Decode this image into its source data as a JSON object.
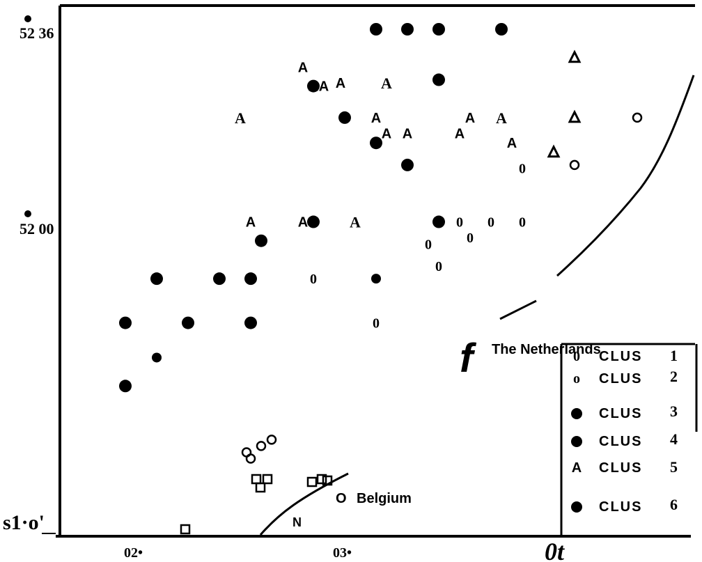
{
  "chart_data": {
    "type": "scatter",
    "title": "",
    "xlabel": "",
    "ylabel": "",
    "x_ticks": [
      "02•",
      "03•",
      "0t"
    ],
    "y_ticks": [
      "52 36",
      "52 00",
      "s1·o'"
    ],
    "annotations": {
      "netherlands": "The Netherlands",
      "belgium": "Belgium",
      "f_glyph": "f",
      "n_glyph": "N"
    },
    "legend": {
      "position": "bottom-right",
      "entries": [
        {
          "symbol": "0",
          "label": "CLUS",
          "num": "1"
        },
        {
          "symbol": "o",
          "label": "CLUS",
          "num": "2"
        },
        {
          "symbol": "●",
          "label": "CLUS",
          "num": "3"
        },
        {
          "symbol": "●",
          "label": "CLUS",
          "num": "4"
        },
        {
          "symbol": "A",
          "label": "CLUS",
          "num": "5"
        },
        {
          "symbol": "●",
          "label": "CLUS",
          "num": "6"
        }
      ]
    },
    "series": [
      {
        "marker": "dot-large",
        "points": [
          [
            3.15,
            52.6
          ],
          [
            3.3,
            52.6
          ],
          [
            3.45,
            52.6
          ],
          [
            3.75,
            52.6
          ],
          [
            3.45,
            52.44
          ],
          [
            2.85,
            52.42
          ],
          [
            3.0,
            52.32
          ],
          [
            3.15,
            52.24
          ],
          [
            3.3,
            52.17
          ],
          [
            2.85,
            51.99
          ],
          [
            3.45,
            51.99
          ],
          [
            2.6,
            51.93
          ],
          [
            1.95,
            51.67
          ],
          [
            2.1,
            51.81
          ],
          [
            2.25,
            51.67
          ],
          [
            2.4,
            51.81
          ],
          [
            2.55,
            51.81
          ],
          [
            2.55,
            51.67
          ],
          [
            1.95,
            51.47
          ]
        ]
      },
      {
        "marker": "dot-small",
        "points": [
          [
            3.15,
            51.81
          ],
          [
            2.1,
            51.56
          ]
        ]
      },
      {
        "marker": "A-sans",
        "points": [
          [
            2.8,
            52.48
          ],
          [
            2.85,
            52.42
          ],
          [
            2.9,
            52.42
          ],
          [
            2.98,
            52.43
          ],
          [
            3.15,
            52.32
          ],
          [
            3.2,
            52.27
          ],
          [
            3.3,
            52.27
          ],
          [
            3.6,
            52.32
          ],
          [
            3.55,
            52.27
          ],
          [
            3.8,
            52.24
          ],
          [
            2.55,
            51.99
          ],
          [
            2.8,
            51.99
          ]
        ]
      },
      {
        "marker": "A-serif",
        "points": [
          [
            2.5,
            52.32
          ],
          [
            3.75,
            52.32
          ],
          [
            3.05,
            51.99
          ],
          [
            3.2,
            52.43
          ]
        ]
      },
      {
        "marker": "triangle-open",
        "points": [
          [
            4.1,
            52.51
          ],
          [
            4.1,
            52.32
          ],
          [
            4.0,
            52.21
          ]
        ]
      },
      {
        "marker": "circle-open",
        "points": [
          [
            4.4,
            52.32
          ],
          [
            4.1,
            52.17
          ],
          [
            2.65,
            51.3
          ],
          [
            2.6,
            51.28
          ],
          [
            2.53,
            51.26
          ],
          [
            2.55,
            51.24
          ]
        ]
      },
      {
        "marker": "zero",
        "points": [
          [
            3.85,
            52.16
          ],
          [
            3.4,
            51.92
          ],
          [
            3.55,
            51.99
          ],
          [
            3.7,
            51.99
          ],
          [
            3.85,
            51.99
          ],
          [
            3.6,
            51.94
          ],
          [
            3.45,
            51.85
          ],
          [
            2.85,
            51.81
          ],
          [
            3.15,
            51.67
          ]
        ]
      }
    ]
  }
}
